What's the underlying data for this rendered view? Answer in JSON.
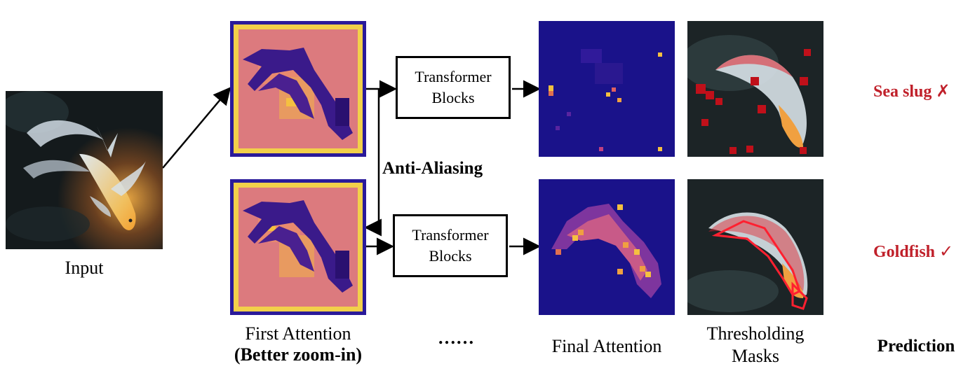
{
  "input": {
    "label": "Input"
  },
  "first_attention": {
    "label_line1": "First Attention",
    "label_line2": "(Better zoom-in)"
  },
  "transformer_top": {
    "line1": "Transformer",
    "line2": "Blocks"
  },
  "transformer_bottom": {
    "line1": "Transformer",
    "line2": "Blocks"
  },
  "anti_aliasing": {
    "label": "Anti-Aliasing"
  },
  "ellipsis": {
    "label": "……"
  },
  "final_attention": {
    "label": "Final  Attention"
  },
  "thresholding": {
    "label_line1": "Thresholding",
    "label_line2": "Masks"
  },
  "predictions": {
    "header": "Prediction",
    "top": {
      "text": "Sea slug ",
      "mark": "✗"
    },
    "bottom": {
      "text": "Goldfish ",
      "mark": "✓"
    }
  },
  "colors": {
    "prediction_red": "#c0202a",
    "mask_red": "#e0202a",
    "attention_dark": "#20168a",
    "attention_warm": "#d8708a"
  }
}
